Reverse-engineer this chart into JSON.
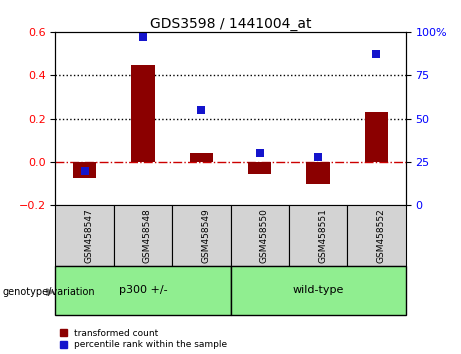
{
  "title": "GDS3598 / 1441004_at",
  "samples": [
    "GSM458547",
    "GSM458548",
    "GSM458549",
    "GSM458550",
    "GSM458551",
    "GSM458552"
  ],
  "red_values": [
    -0.075,
    0.445,
    0.04,
    -0.055,
    -0.1,
    0.23
  ],
  "blue_percentiles": [
    20,
    97,
    55,
    30,
    28,
    87
  ],
  "ylim_left": [
    -0.2,
    0.6
  ],
  "ylim_right": [
    0,
    100
  ],
  "yticks_left": [
    -0.2,
    0.0,
    0.2,
    0.4,
    0.6
  ],
  "yticks_right": [
    0,
    25,
    50,
    75,
    100
  ],
  "group_box_color": "#d3d3d3",
  "green_color": "#90EE90",
  "bar_color": "#8B0000",
  "dot_color": "#1414cc",
  "dashed_line_color": "#cc0000",
  "dotted_line_color": "#000000",
  "bar_width": 0.4,
  "legend_red": "transformed count",
  "legend_blue": "percentile rank within the sample",
  "genotype_label": "genotype/variation",
  "groups": [
    {
      "label": "p300 +/-",
      "start": 0,
      "end": 3
    },
    {
      "label": "wild-type",
      "start": 3,
      "end": 6
    }
  ]
}
